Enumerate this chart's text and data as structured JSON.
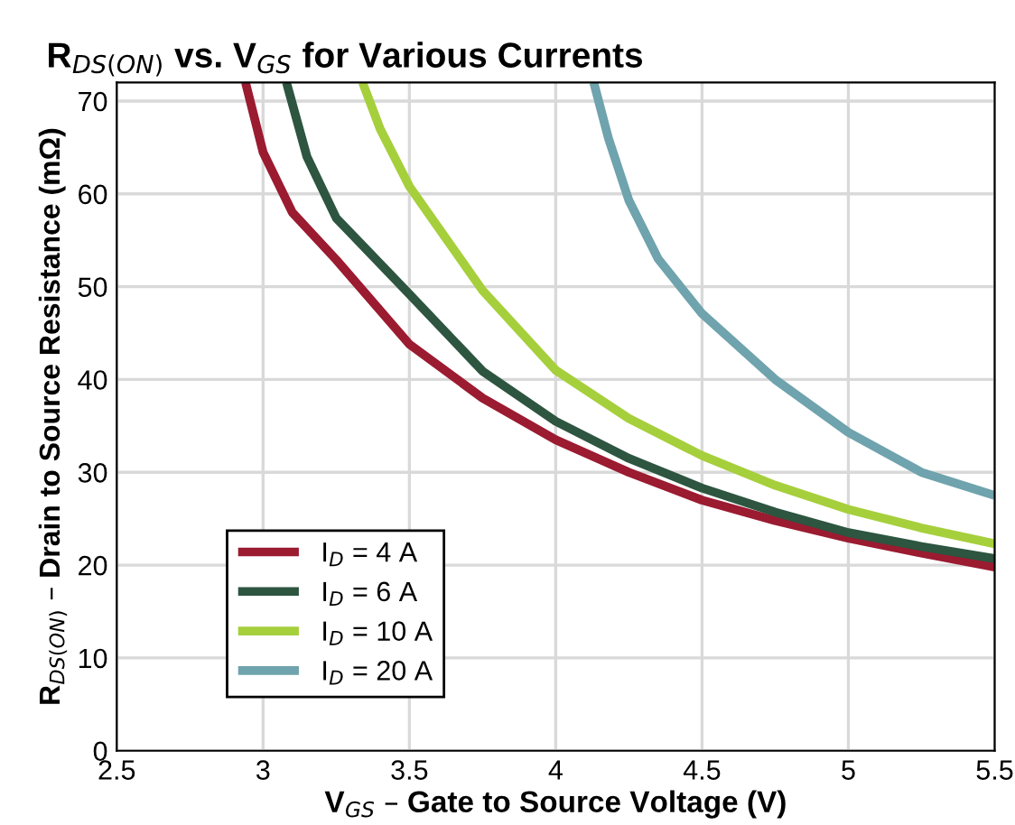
{
  "chart_data": {
    "type": "line",
    "title": "R$_{DS(ON)}$ vs. V$_{GS}$ for Various Currents",
    "xlabel": "V$_{GS}$ – Gate to Source Voltage (V)",
    "ylabel": "R$_{DS(ON)}$ – Drain to Source Resistance (mΩ)",
    "xlim": [
      2.5,
      5.5
    ],
    "xticks": [
      2.5,
      3,
      3.5,
      4,
      4.5,
      5,
      5.5
    ],
    "ylim": [
      0,
      72
    ],
    "yticks": [
      0,
      10,
      20,
      30,
      40,
      50,
      60,
      70
    ],
    "grid": true,
    "legend": "bottom left",
    "marker": "none",
    "line_style": "solid",
    "series": [
      {
        "name": "I$_{D}$ = 4 A",
        "color": "#9b1b30",
        "x": [
          2.94,
          3.0,
          3.1,
          3.25,
          3.5,
          3.75,
          4.0,
          4.25,
          4.5,
          4.75,
          5.0,
          5.25,
          5.5
        ],
        "values": [
          72,
          64.5,
          58,
          52.9,
          43.8,
          38,
          33.5,
          30,
          27,
          24.8,
          22.9,
          21.3,
          19.8
        ]
      },
      {
        "name": "I$_{D}$ = 6 A",
        "color": "#2d5540",
        "x": [
          3.08,
          3.15,
          3.25,
          3.5,
          3.75,
          4.0,
          4.25,
          4.5,
          4.75,
          5.0,
          5.25,
          5.5
        ],
        "values": [
          72,
          64,
          57.4,
          49.2,
          40.9,
          35.5,
          31.5,
          28.3,
          25.7,
          23.5,
          22,
          20.7
        ]
      },
      {
        "name": "I$_{D}$ = 10 A",
        "color": "#a6cf3c",
        "x": [
          3.34,
          3.4,
          3.5,
          3.75,
          4.0,
          4.25,
          4.5,
          4.75,
          5.0,
          5.25,
          5.5
        ],
        "values": [
          72,
          67,
          60.8,
          49.6,
          41,
          35.8,
          31.8,
          28.6,
          26,
          24,
          22.3
        ]
      },
      {
        "name": "I$_{D}$ = 20 A",
        "color": "#6fa3ad",
        "x": [
          4.13,
          4.18,
          4.25,
          4.35,
          4.5,
          4.75,
          5.0,
          5.25,
          5.5
        ],
        "values": [
          72,
          66,
          59.3,
          53,
          47.1,
          40,
          34.3,
          30,
          27.5
        ]
      }
    ]
  }
}
